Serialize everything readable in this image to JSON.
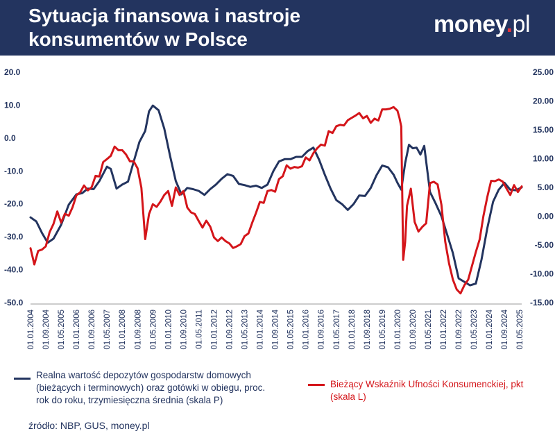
{
  "header": {
    "title": "Sytuacja finansowa i nastroje konsumentów w Polsce",
    "logo_main": "money",
    "logo_dot": ".",
    "logo_tld": "pl"
  },
  "source": "źródło: NBP, GUS, money.pl",
  "colors": {
    "header_bg": "#23345f",
    "navy": "#23345f",
    "red": "#d4151a"
  },
  "chart_data": {
    "type": "line",
    "title": "Sytuacja finansowa i nastroje konsumentów w Polsce",
    "x_tick_labels": [
      "01.01.2004",
      "01.09.2004",
      "01.05.2005",
      "01.01.2006",
      "01.09.2006",
      "01.05.2007",
      "01.01.2008",
      "01.09.2008",
      "01.05.2009",
      "01.01.2010",
      "01.09.2010",
      "01.05.2011",
      "01.01.2012",
      "01.09.2012",
      "01.05.2013",
      "01.01.2014",
      "01.09.2014",
      "01.05.2015",
      "01.01.2016",
      "01.09.2016",
      "01.05.2017",
      "01.01.2018",
      "01.09.2018",
      "01.05.2019",
      "01.01.2020",
      "01.09.2020",
      "01.05.2021",
      "01.01.2022",
      "01.09.2022",
      "01.05.2023",
      "01.01.2024",
      "01.09.2024",
      "01.05.2025"
    ],
    "x_range": [
      "2004-01",
      "2025-06"
    ],
    "left_axis": {
      "ticks": [
        "20.0",
        "10.0",
        "0.0",
        "-10.0",
        "-20.0",
        "-30.0",
        "-40.0",
        "-50.0"
      ],
      "min": -50,
      "max": 20
    },
    "right_axis": {
      "ticks": [
        "25.00",
        "20.00",
        "15.00",
        "10.00",
        "5.00",
        "0.00",
        "-5.00",
        "-10.00",
        "-15.00"
      ],
      "min": -15,
      "max": 25
    },
    "grid": false,
    "series": [
      {
        "name": "Realna wartość depozytów gospodarstw domowych (bieżących i terminowych) oraz gotówki w obiegu, proc. rok do roku, trzymiesięczna średnia (skala P)",
        "color": "#23345f",
        "axis": "right",
        "points": [
          [
            "2004-01",
            -0.2
          ],
          [
            "2004-04",
            -0.9
          ],
          [
            "2004-07",
            -2.9
          ],
          [
            "2004-10",
            -4.6
          ],
          [
            "2005-01",
            -3.9
          ],
          [
            "2005-05",
            -1.5
          ],
          [
            "2005-09",
            2.0
          ],
          [
            "2006-01",
            3.8
          ],
          [
            "2006-04",
            4.0
          ],
          [
            "2006-07",
            4.8
          ],
          [
            "2006-10",
            4.7
          ],
          [
            "2007-01",
            6.1
          ],
          [
            "2007-05",
            8.6
          ],
          [
            "2007-07",
            8.2
          ],
          [
            "2007-10",
            4.8
          ],
          [
            "2008-01",
            5.5
          ],
          [
            "2008-04",
            6.0
          ],
          [
            "2008-07",
            9.5
          ],
          [
            "2008-10",
            12.9
          ],
          [
            "2009-01",
            14.8
          ],
          [
            "2009-03",
            18.2
          ],
          [
            "2009-05",
            19.2
          ],
          [
            "2009-08",
            18.4
          ],
          [
            "2009-11",
            15.2
          ],
          [
            "2010-02",
            10.5
          ],
          [
            "2010-05",
            6.1
          ],
          [
            "2010-08",
            3.8
          ],
          [
            "2010-11",
            4.9
          ],
          [
            "2011-02",
            4.7
          ],
          [
            "2011-05",
            4.4
          ],
          [
            "2011-08",
            3.7
          ],
          [
            "2011-11",
            4.7
          ],
          [
            "2012-02",
            5.5
          ],
          [
            "2012-05",
            6.5
          ],
          [
            "2012-08",
            7.3
          ],
          [
            "2012-11",
            7.0
          ],
          [
            "2013-02",
            5.6
          ],
          [
            "2013-05",
            5.4
          ],
          [
            "2013-08",
            5.1
          ],
          [
            "2013-11",
            5.3
          ],
          [
            "2014-02",
            4.9
          ],
          [
            "2014-05",
            5.5
          ],
          [
            "2014-08",
            7.8
          ],
          [
            "2014-11",
            9.5
          ],
          [
            "2015-02",
            9.9
          ],
          [
            "2015-05",
            9.9
          ],
          [
            "2015-08",
            10.3
          ],
          [
            "2015-11",
            10.3
          ],
          [
            "2016-02",
            11.3
          ],
          [
            "2016-05",
            11.9
          ],
          [
            "2016-08",
            9.8
          ],
          [
            "2016-11",
            7.2
          ],
          [
            "2017-02",
            4.8
          ],
          [
            "2017-05",
            2.8
          ],
          [
            "2017-08",
            2.1
          ],
          [
            "2017-11",
            1.1
          ],
          [
            "2018-02",
            2.1
          ],
          [
            "2018-05",
            3.6
          ],
          [
            "2018-08",
            3.5
          ],
          [
            "2018-11",
            4.9
          ],
          [
            "2019-02",
            7.1
          ],
          [
            "2019-05",
            8.8
          ],
          [
            "2019-08",
            8.5
          ],
          [
            "2019-11",
            7.2
          ],
          [
            "2020-01",
            5.8
          ],
          [
            "2020-03",
            4.6
          ],
          [
            "2020-05",
            9.2
          ],
          [
            "2020-07",
            12.4
          ],
          [
            "2020-09",
            11.8
          ],
          [
            "2020-11",
            11.9
          ],
          [
            "2021-01",
            10.7
          ],
          [
            "2021-03",
            12.2
          ],
          [
            "2021-06",
            4.2
          ],
          [
            "2021-09",
            2.2
          ],
          [
            "2021-12",
            0.0
          ],
          [
            "2022-03",
            -3.2
          ],
          [
            "2022-06",
            -6.4
          ],
          [
            "2022-09",
            -10.8
          ],
          [
            "2022-12",
            -11.4
          ],
          [
            "2023-03",
            -12.0
          ],
          [
            "2023-06",
            -11.7
          ],
          [
            "2023-09",
            -7.5
          ],
          [
            "2023-12",
            -2.1
          ],
          [
            "2024-03",
            2.5
          ],
          [
            "2024-06",
            4.6
          ],
          [
            "2024-09",
            5.8
          ],
          [
            "2024-12",
            4.6
          ],
          [
            "2025-03",
            4.5
          ],
          [
            "2025-06",
            5.0
          ]
        ]
      },
      {
        "name": "Bieżący Wskaźnik Ufności Konsumenckiej, pkt (skala L)",
        "color": "#d4151a",
        "axis": "left",
        "points": [
          [
            "2004-01",
            -33.5
          ],
          [
            "2004-03",
            -38.4
          ],
          [
            "2004-05",
            -34.3
          ],
          [
            "2004-07",
            -33.9
          ],
          [
            "2004-09",
            -32.9
          ],
          [
            "2004-11",
            -28.6
          ],
          [
            "2005-01",
            -26.1
          ],
          [
            "2005-03",
            -22.3
          ],
          [
            "2005-05",
            -25.7
          ],
          [
            "2005-07",
            -23.0
          ],
          [
            "2005-09",
            -23.6
          ],
          [
            "2005-11",
            -21.0
          ],
          [
            "2006-01",
            -17.4
          ],
          [
            "2006-03",
            -16.5
          ],
          [
            "2006-05",
            -14.4
          ],
          [
            "2006-07",
            -15.9
          ],
          [
            "2006-09",
            -14.9
          ],
          [
            "2006-11",
            -11.5
          ],
          [
            "2007-01",
            -11.7
          ],
          [
            "2007-03",
            -7.3
          ],
          [
            "2007-05",
            -6.4
          ],
          [
            "2007-07",
            -5.4
          ],
          [
            "2007-09",
            -2.6
          ],
          [
            "2007-11",
            -3.7
          ],
          [
            "2008-01",
            -3.7
          ],
          [
            "2008-03",
            -5.0
          ],
          [
            "2008-05",
            -7.1
          ],
          [
            "2008-07",
            -7.1
          ],
          [
            "2008-09",
            -9.2
          ],
          [
            "2008-11",
            -15.1
          ],
          [
            "2009-01",
            -30.7
          ],
          [
            "2009-03",
            -23.1
          ],
          [
            "2009-05",
            -20.1
          ],
          [
            "2009-07",
            -20.9
          ],
          [
            "2009-09",
            -19.3
          ],
          [
            "2009-11",
            -17.3
          ],
          [
            "2010-01",
            -16.1
          ],
          [
            "2010-03",
            -20.6
          ],
          [
            "2010-05",
            -15.0
          ],
          [
            "2010-07",
            -17.3
          ],
          [
            "2010-09",
            -16.1
          ],
          [
            "2010-11",
            -21.1
          ],
          [
            "2011-01",
            -22.6
          ],
          [
            "2011-03",
            -23.1
          ],
          [
            "2011-05",
            -25.2
          ],
          [
            "2011-07",
            -27.2
          ],
          [
            "2011-09",
            -25.1
          ],
          [
            "2011-11",
            -26.9
          ],
          [
            "2012-01",
            -30.2
          ],
          [
            "2012-03",
            -31.3
          ],
          [
            "2012-05",
            -30.2
          ],
          [
            "2012-07",
            -31.3
          ],
          [
            "2012-09",
            -32.0
          ],
          [
            "2012-11",
            -33.4
          ],
          [
            "2013-01",
            -32.9
          ],
          [
            "2013-03",
            -32.2
          ],
          [
            "2013-05",
            -29.8
          ],
          [
            "2013-07",
            -29.0
          ],
          [
            "2013-09",
            -25.7
          ],
          [
            "2013-11",
            -22.7
          ],
          [
            "2014-01",
            -19.4
          ],
          [
            "2014-03",
            -19.7
          ],
          [
            "2014-05",
            -16.1
          ],
          [
            "2014-07",
            -15.8
          ],
          [
            "2014-09",
            -16.3
          ],
          [
            "2014-11",
            -12.5
          ],
          [
            "2015-01",
            -11.6
          ],
          [
            "2015-03",
            -8.3
          ],
          [
            "2015-05",
            -9.3
          ],
          [
            "2015-07",
            -8.8
          ],
          [
            "2015-09",
            -9.0
          ],
          [
            "2015-11",
            -8.6
          ],
          [
            "2016-01",
            -5.9
          ],
          [
            "2016-03",
            -6.8
          ],
          [
            "2016-05",
            -4.6
          ],
          [
            "2016-07",
            -3.1
          ],
          [
            "2016-09",
            -2.0
          ],
          [
            "2016-11",
            -2.3
          ],
          [
            "2017-01",
            2.1
          ],
          [
            "2017-03",
            1.5
          ],
          [
            "2017-05",
            3.6
          ],
          [
            "2017-07",
            4.0
          ],
          [
            "2017-09",
            3.8
          ],
          [
            "2017-11",
            5.4
          ],
          [
            "2018-01",
            6.1
          ],
          [
            "2018-03",
            6.8
          ],
          [
            "2018-05",
            7.6
          ],
          [
            "2018-07",
            6.0
          ],
          [
            "2018-09",
            6.7
          ],
          [
            "2018-11",
            4.6
          ],
          [
            "2019-01",
            5.9
          ],
          [
            "2019-03",
            5.3
          ],
          [
            "2019-05",
            8.7
          ],
          [
            "2019-07",
            8.7
          ],
          [
            "2019-09",
            8.9
          ],
          [
            "2019-11",
            9.4
          ],
          [
            "2020-01",
            8.3
          ],
          [
            "2020-02",
            6.2
          ],
          [
            "2020-03",
            3.5
          ],
          [
            "2020-04",
            -37.0
          ],
          [
            "2020-05",
            -31.6
          ],
          [
            "2020-06",
            -20.6
          ],
          [
            "2020-08",
            -15.4
          ],
          [
            "2020-10",
            -25.5
          ],
          [
            "2020-12",
            -28.4
          ],
          [
            "2021-02",
            -27.0
          ],
          [
            "2021-04",
            -25.9
          ],
          [
            "2021-06",
            -13.7
          ],
          [
            "2021-08",
            -13.3
          ],
          [
            "2021-10",
            -14.1
          ],
          [
            "2021-12",
            -20.3
          ],
          [
            "2022-02",
            -31.5
          ],
          [
            "2022-04",
            -38.1
          ],
          [
            "2022-06",
            -43.0
          ],
          [
            "2022-08",
            -46.0
          ],
          [
            "2022-10",
            -47.2
          ],
          [
            "2022-12",
            -44.7
          ],
          [
            "2023-02",
            -43.0
          ],
          [
            "2023-04",
            -38.8
          ],
          [
            "2023-06",
            -34.6
          ],
          [
            "2023-08",
            -30.8
          ],
          [
            "2023-10",
            -23.6
          ],
          [
            "2023-12",
            -17.9
          ],
          [
            "2024-02",
            -13.0
          ],
          [
            "2024-04",
            -13.1
          ],
          [
            "2024-06",
            -12.6
          ],
          [
            "2024-08",
            -13.2
          ],
          [
            "2024-10",
            -15.3
          ],
          [
            "2024-12",
            -17.3
          ],
          [
            "2025-02",
            -14.3
          ],
          [
            "2025-04",
            -16.4
          ],
          [
            "2025-06",
            -14.7
          ]
        ]
      }
    ]
  },
  "legend": {
    "navy_text": "Realna wartość depozytów gospodarstw domowych (bieżących i terminowych) oraz gotówki w obiegu, proc. rok do roku, trzymiesięczna średnia (skala P)",
    "red_text": "Bieżący Wskaźnik Ufności Konsumenckiej, pkt (skala L)"
  }
}
